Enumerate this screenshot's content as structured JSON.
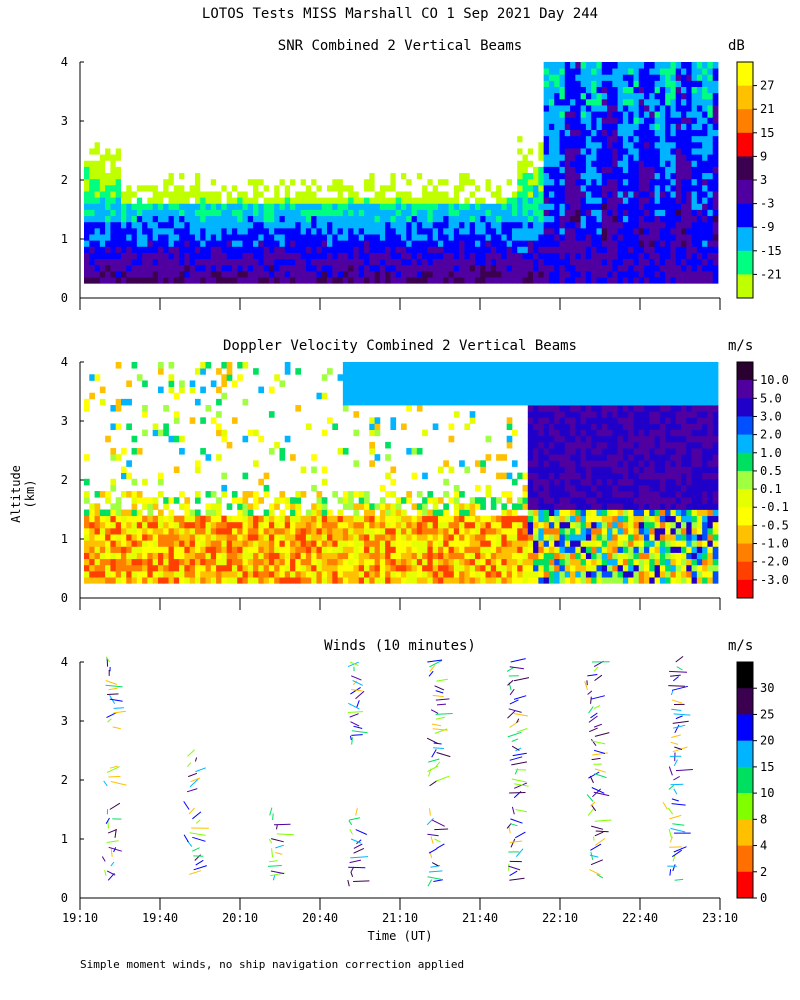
{
  "title": "LOTOS Tests MISS Marshall CO   1 Sep 2021 Day 244",
  "y_axis_label": "Altitude (km)",
  "x_axis_label": "Time (UT)",
  "footnote": "Simple moment winds, no ship navigation correction applied",
  "x_ticks": [
    "19:10",
    "19:40",
    "20:10",
    "20:40",
    "21:10",
    "21:40",
    "22:10",
    "22:40",
    "23:10"
  ],
  "y_ticks": [
    "0",
    "1",
    "2",
    "3",
    "4"
  ],
  "chart_data": [
    {
      "type": "heatmap",
      "title": "SNR Combined 2 Vertical Beams",
      "unit": "dB",
      "xlabel": "Time (UT)",
      "ylabel": "Altitude (km)",
      "xlim": [
        "19:10",
        "23:10"
      ],
      "ylim": [
        0,
        4
      ],
      "colorbar_labels": [
        "27",
        "21",
        "15",
        "9",
        "3",
        "-3",
        "-9",
        "-15",
        "-21"
      ],
      "colors": [
        "#ffff00",
        "#ffc000",
        "#ff8000",
        "#ff0000",
        "#3c0050",
        "#5000a0",
        "#0000ff",
        "#00b4ff",
        "#00ff80",
        "#c0ff00"
      ],
      "description_levels_dB": [
        27,
        21,
        15,
        9,
        3,
        -3,
        -9,
        -15,
        -21
      ]
    },
    {
      "type": "heatmap",
      "title": "Doppler Velocity Combined 2 Vertical Beams",
      "unit": "m/s",
      "xlabel": "Time (UT)",
      "ylabel": "Altitude (km)",
      "xlim": [
        "19:10",
        "23:10"
      ],
      "ylim": [
        0,
        4
      ],
      "colorbar_labels": [
        "10.0",
        "5.0",
        "3.0",
        "2.0",
        "1.0",
        "0.5",
        "0.1",
        "-0.1",
        "-0.5",
        "-1.0",
        "-2.0",
        "-3.0"
      ],
      "colors": [
        "#2a0030",
        "#5000a0",
        "#2000c8",
        "#0050ff",
        "#00b4ff",
        "#00e060",
        "#a0ff40",
        "#e6ff00",
        "#ffff00",
        "#ffc000",
        "#ff8000",
        "#ff4000",
        "#ff0000"
      ]
    },
    {
      "type": "scatter",
      "title": "Winds (10 minutes)",
      "unit": "m/s",
      "xlabel": "Time (UT)",
      "ylabel": "Altitude (km)",
      "xlim": [
        "19:10",
        "23:10"
      ],
      "ylim": [
        0,
        4
      ],
      "colorbar_labels": [
        "30",
        "25",
        "20",
        "15",
        "10",
        "8",
        "4",
        "2",
        "0"
      ],
      "colors": [
        "#000000",
        "#3c0050",
        "#0000ff",
        "#00b4ff",
        "#00e060",
        "#80ff00",
        "#ffc000",
        "#ff7000",
        "#ff0000"
      ],
      "profile_times": [
        "19:25",
        "19:55",
        "20:25",
        "20:55",
        "21:25",
        "21:55",
        "22:25",
        "22:55"
      ]
    }
  ]
}
